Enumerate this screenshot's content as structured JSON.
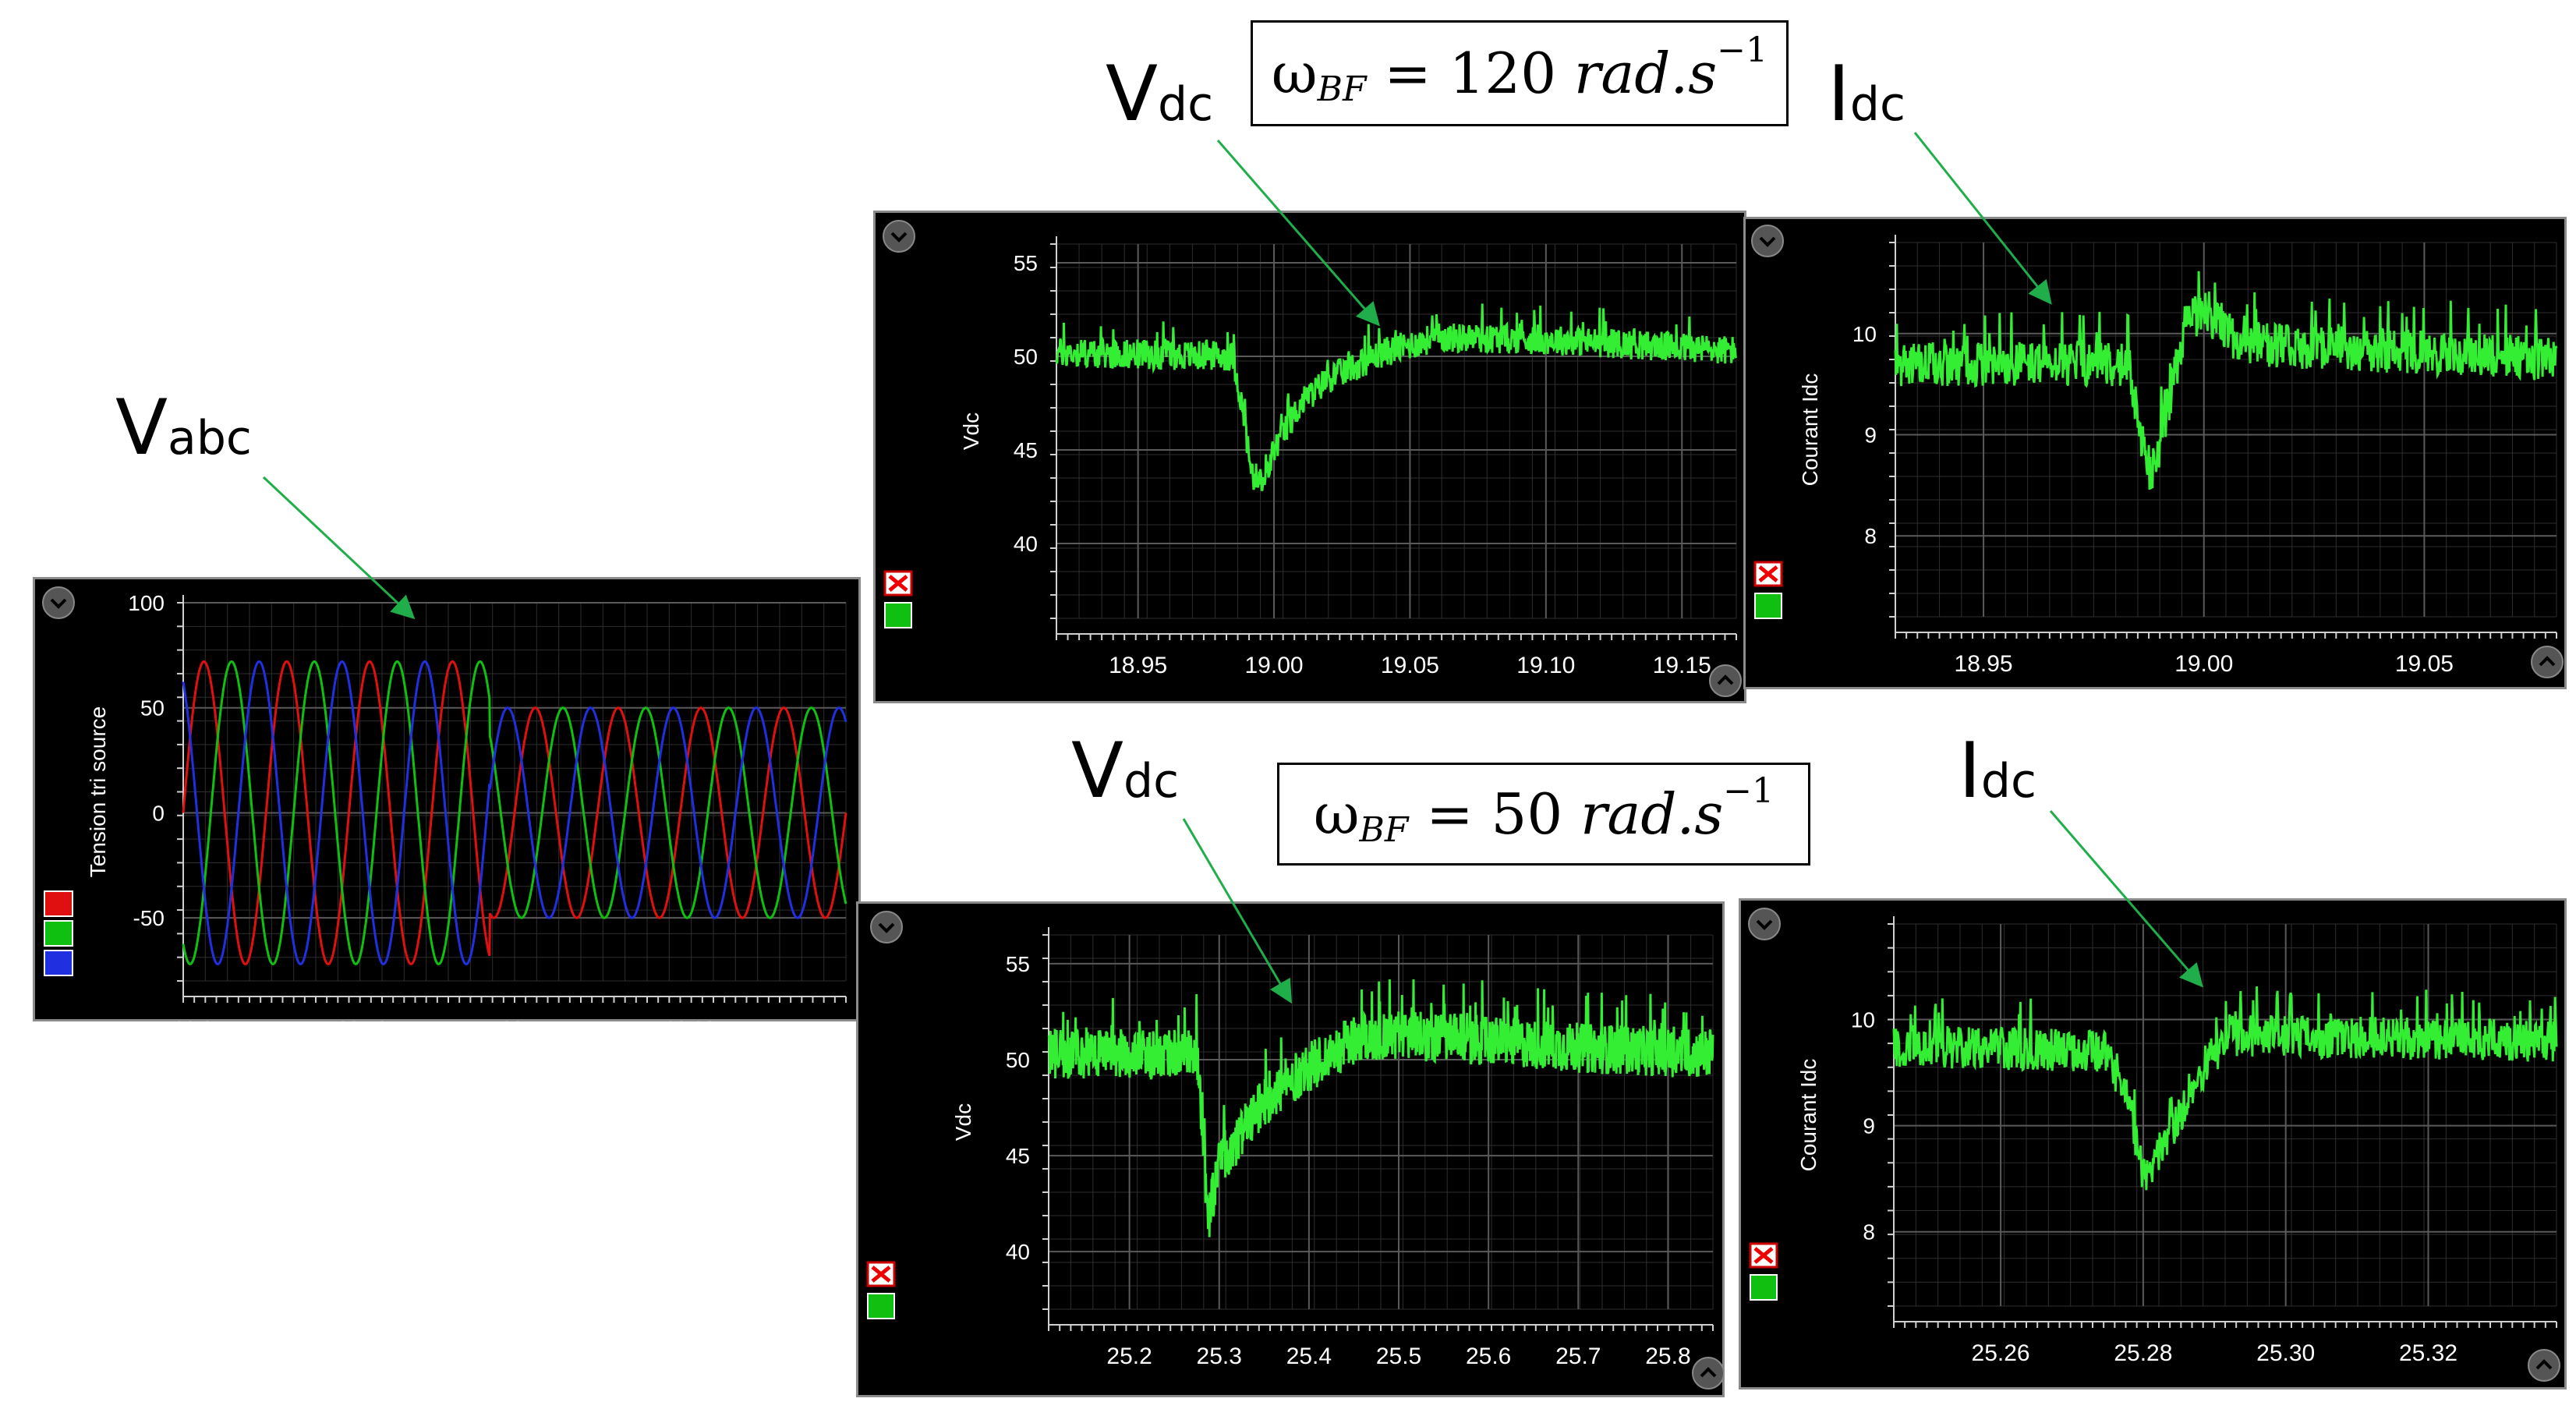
{
  "annotations": {
    "vabc": {
      "main": "V",
      "sub": "abc"
    },
    "vdc_top": {
      "main": "V",
      "sub": "dc"
    },
    "idc_top": {
      "main": "I",
      "sub": "dc"
    },
    "vdc_bottom": {
      "main": "V",
      "sub": "dc"
    },
    "idc_bottom": {
      "main": "I",
      "sub": "dc"
    },
    "formula_top": {
      "omega": "ω",
      "sub": "BF",
      "eq": " = 120 ",
      "unit": "rad.s",
      "exp": "−1"
    },
    "formula_bottom": {
      "omega": "ω",
      "sub": "BF",
      "eq": " = 50 ",
      "unit": "rad.s",
      "exp": "−1"
    }
  },
  "colors": {
    "trace": "#33ee33",
    "arrow": "#1fae4a",
    "grid": "#5a5a5a",
    "axis_text": "#ffffff",
    "phase_a": "#e01010",
    "phase_b": "#10c010",
    "phase_c": "#2030e0"
  },
  "chart_data": [
    {
      "type": "line",
      "ylabel": "Tension tri source",
      "ylim": [
        -80,
        100
      ],
      "yticks": [
        100,
        50,
        0,
        -50
      ],
      "xlim": [
        20.65,
        20.81
      ],
      "series": [
        {
          "color": "red",
          "amplitude_before": 72,
          "amplitude_after": 50
        },
        {
          "color": "green",
          "amplitude_before": 72,
          "amplitude_after": 50
        },
        {
          "color": "blue",
          "amplitude_before": 72,
          "amplitude_after": 50
        }
      ],
      "step_time": 20.724,
      "legend_swatches": [
        "red",
        "green",
        "blue"
      ]
    },
    {
      "type": "line",
      "ylabel": "Vdc",
      "ylim": [
        36,
        56
      ],
      "yticks": [
        55,
        50,
        45,
        40
      ],
      "xlim": [
        18.92,
        19.17
      ],
      "xticks": [
        "18.95",
        "19.00",
        "19.05",
        "19.10",
        "19.15"
      ],
      "points": [
        [
          18.92,
          50.2
        ],
        [
          18.985,
          50.0
        ],
        [
          18.988,
          47.5
        ],
        [
          18.992,
          43.5
        ],
        [
          18.996,
          43.0
        ],
        [
          19.0,
          45.0
        ],
        [
          19.01,
          47.5
        ],
        [
          19.02,
          48.8
        ],
        [
          19.04,
          50.2
        ],
        [
          19.06,
          51.0
        ],
        [
          19.1,
          50.9
        ],
        [
          19.17,
          50.3
        ]
      ],
      "noise": 0.8
    },
    {
      "type": "line",
      "ylabel": "Courant Idc",
      "ylim": [
        7.2,
        10.9
      ],
      "yticks": [
        10,
        9,
        8
      ],
      "xlim": [
        18.93,
        19.08
      ],
      "xticks": [
        "18.95",
        "19.00",
        "19.05"
      ],
      "points": [
        [
          18.93,
          9.7
        ],
        [
          18.983,
          9.7
        ],
        [
          18.986,
          8.9
        ],
        [
          18.988,
          8.55
        ],
        [
          18.992,
          9.3
        ],
        [
          18.996,
          10.1
        ],
        [
          19.0,
          10.25
        ],
        [
          19.008,
          9.9
        ],
        [
          19.08,
          9.75
        ]
      ],
      "noise": 0.22
    },
    {
      "type": "line",
      "ylabel": "Vdc",
      "ylim": [
        37,
        56.5
      ],
      "yticks": [
        55,
        50,
        45,
        40
      ],
      "xlim": [
        25.11,
        25.85
      ],
      "xticks": [
        "25.2",
        "25.3",
        "25.4",
        "25.5",
        "25.6",
        "25.7",
        "25.8"
      ],
      "points": [
        [
          25.11,
          50.3
        ],
        [
          25.275,
          50.3
        ],
        [
          25.283,
          45.0
        ],
        [
          25.287,
          41.5
        ],
        [
          25.3,
          44.5
        ],
        [
          25.35,
          47.8
        ],
        [
          25.4,
          49.6
        ],
        [
          25.45,
          51.0
        ],
        [
          25.5,
          51.3
        ],
        [
          25.6,
          51.0
        ],
        [
          25.7,
          50.6
        ],
        [
          25.85,
          50.3
        ]
      ],
      "noise": 1.3
    },
    {
      "type": "line",
      "ylabel": "Courant Idc",
      "ylim": [
        7.3,
        10.9
      ],
      "yticks": [
        10,
        9,
        8
      ],
      "xlim": [
        25.245,
        25.338
      ],
      "xticks": [
        "25.26",
        "25.28",
        "25.30",
        "25.32"
      ],
      "points": [
        [
          25.245,
          9.75
        ],
        [
          25.275,
          9.7
        ],
        [
          25.278,
          9.2
        ],
        [
          25.28,
          8.55
        ],
        [
          25.283,
          8.8
        ],
        [
          25.285,
          9.1
        ],
        [
          25.288,
          9.5
        ],
        [
          25.292,
          9.85
        ],
        [
          25.338,
          9.8
        ]
      ],
      "noise": 0.2
    }
  ]
}
